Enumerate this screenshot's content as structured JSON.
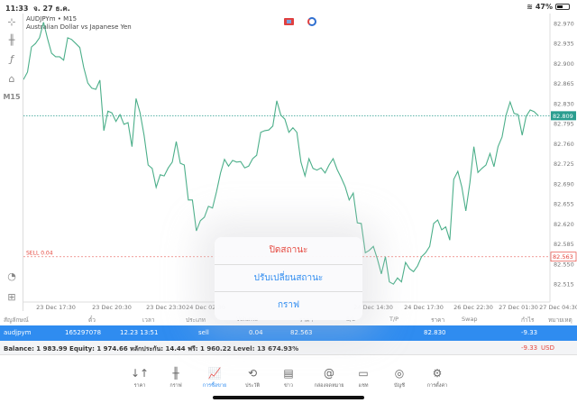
{
  "status_bar": {
    "time": "11:33",
    "date": "จ. 27 ธ.ค.",
    "battery": "47%",
    "battery_level": 0.47
  },
  "chart": {
    "symbol_line": "AUDJPYm • M15",
    "description": "Australian Dollar vs Japanese Yen",
    "timeframe": "M15",
    "line_color": "#4caf8a",
    "current_price": "82.809",
    "current_price_color": "#2a9d8f",
    "order_label": "SELL 0.04",
    "order_price": "82.563",
    "order_color": "#e5473e"
  },
  "chart_data": {
    "type": "line",
    "ylim": [
      82.5,
      82.985
    ],
    "y_ticks": [
      "82.970",
      "82.935",
      "82.900",
      "82.865",
      "82.830",
      "82.795",
      "82.760",
      "82.725",
      "82.690",
      "82.655",
      "82.620",
      "82.585",
      "82.550",
      "82.515"
    ],
    "x_ticks": [
      "23 Dec 17:30",
      "23 Dec 20:30",
      "23 Dec 23:30",
      "24 Dec 02:30",
      "24 Dec 14:30",
      "24 Dec 17:30",
      "26 Dec 22:30",
      "27 Dec 01:30",
      "27 Dec 04:30"
    ],
    "series": [
      {
        "values": [
          82.872,
          82.885,
          82.929,
          82.935,
          82.945,
          82.972,
          82.943,
          82.918,
          82.912,
          82.912,
          82.906,
          82.945,
          82.942,
          82.935,
          82.928,
          82.893,
          82.866,
          82.857,
          82.855,
          82.871,
          82.783,
          82.817,
          82.814,
          82.799,
          82.811,
          82.794,
          82.797,
          82.755,
          82.839,
          82.814,
          82.775,
          82.723,
          82.717,
          82.684,
          82.706,
          82.704,
          82.718,
          82.728,
          82.764,
          82.726,
          82.723,
          82.662,
          82.662,
          82.608,
          82.626,
          82.632,
          82.651,
          82.648,
          82.676,
          82.709,
          82.733,
          82.721,
          82.731,
          82.728,
          82.729,
          82.718,
          82.721,
          82.734,
          82.74,
          82.78,
          82.783,
          82.784,
          82.791,
          82.835,
          82.81,
          82.803,
          82.78,
          82.788,
          82.78,
          82.728,
          82.704,
          82.734,
          82.717,
          82.714,
          82.718,
          82.709,
          82.723,
          82.734,
          82.715,
          82.701,
          82.685,
          82.662,
          82.674,
          82.622,
          82.621,
          82.57,
          82.574,
          82.581,
          82.559,
          82.533,
          82.563,
          82.519,
          82.515,
          82.526,
          82.519,
          82.553,
          82.542,
          82.537,
          82.547,
          82.563,
          82.57,
          82.581,
          82.621,
          82.627,
          82.61,
          82.615,
          82.592,
          82.698,
          82.712,
          82.685,
          82.643,
          82.692,
          82.755,
          82.71,
          82.717,
          82.723,
          82.743,
          82.72,
          82.755,
          82.772,
          82.81,
          82.833,
          82.813,
          82.811,
          82.775,
          82.808,
          82.819,
          82.816,
          82.809
        ]
      }
    ]
  },
  "x_tick_positions_hidden": null,
  "popup": {
    "items": [
      {
        "label": "ปิดสถานะ"
      },
      {
        "label": "ปรับเปลี่ยนสถานะ"
      },
      {
        "label": "กราฟ"
      }
    ]
  },
  "table": {
    "headers": [
      "สัญลักษณ์",
      "ตั๋ว",
      "เวลา",
      "ประเภท",
      "Volume",
      "ราคา",
      "S/L",
      "T/P",
      "ราคา",
      "Swap",
      "กำไร",
      "หมายเหตุ"
    ],
    "row": {
      "symbol": "audjpym",
      "ticket": "165297078",
      "time": "12.23 13:51",
      "type": "sell",
      "volume": "0.04",
      "open_price": "82.563",
      "current_price": "82.830",
      "profit": "-9.33"
    }
  },
  "balance": {
    "text": "Balance: 1 983.99 Equity: 1 974.66 หลักประกัน: 14.44 ฟรี: 1 960.22 Level: 13 674.93%",
    "profit": "-9.33",
    "currency": "USD"
  },
  "tabs": [
    {
      "label": "ราคา",
      "icon": "↓↑"
    },
    {
      "label": "กราฟ",
      "icon": "╫"
    },
    {
      "label": "การซื้อขาย",
      "icon": "📈"
    },
    {
      "label": "ประวัติ",
      "icon": "⟲"
    },
    {
      "label": "ข่าว",
      "icon": "▤"
    },
    {
      "label": "กล่องจดหมาย",
      "icon": "@"
    },
    {
      "label": "แชท",
      "icon": "▭"
    },
    {
      "label": "บัญชี",
      "icon": "◎"
    },
    {
      "label": "การตั้งค่า",
      "icon": "⚙"
    }
  ],
  "active_tab": "การซื้อขาย"
}
